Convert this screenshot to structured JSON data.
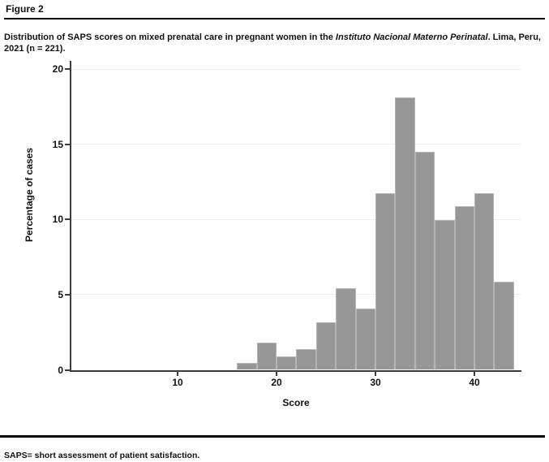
{
  "figure": {
    "label": "Figure 2",
    "caption_prefix": "Distribution of SAPS scores on mixed prenatal care in pregnant women in the ",
    "caption_italic": "Instituto Nacional Materno Perinatal",
    "caption_suffix": ". Lima, Peru, 2021 (n = 221).",
    "footnote": "SAPS= short assessment of patient satisfaction."
  },
  "chart_data": {
    "type": "bar",
    "subtype": "histogram",
    "title": "",
    "xlabel": "Score",
    "ylabel": "Percentage of cases",
    "x_ticks": [
      10,
      20,
      30,
      40
    ],
    "y_ticks": [
      0,
      5,
      10,
      15,
      20
    ],
    "xlim": [
      0,
      44.8
    ],
    "ylim": [
      0,
      20
    ],
    "grid": true,
    "legend_position": "none",
    "bin_width": 2,
    "n_total": 221,
    "bins": [
      {
        "start": 16,
        "end": 18,
        "count": 1,
        "pct": 0.45
      },
      {
        "start": 18,
        "end": 20,
        "count": 4,
        "pct": 1.81
      },
      {
        "start": 20,
        "end": 22,
        "count": 2,
        "pct": 0.9
      },
      {
        "start": 22,
        "end": 24,
        "count": 3,
        "pct": 1.36
      },
      {
        "start": 24,
        "end": 26,
        "count": 7,
        "pct": 3.17
      },
      {
        "start": 26,
        "end": 28,
        "count": 12,
        "pct": 5.43
      },
      {
        "start": 28,
        "end": 30,
        "count": 9,
        "pct": 4.07
      },
      {
        "start": 30,
        "end": 32,
        "count": 26,
        "pct": 11.76
      },
      {
        "start": 32,
        "end": 34,
        "count": 40,
        "pct": 18.1
      },
      {
        "start": 34,
        "end": 36,
        "count": 32,
        "pct": 14.48
      },
      {
        "start": 36,
        "end": 38,
        "count": 22,
        "pct": 9.95
      },
      {
        "start": 38,
        "end": 40,
        "count": 24,
        "pct": 10.86
      },
      {
        "start": 40,
        "end": 42,
        "count": 26,
        "pct": 11.76
      },
      {
        "start": 42,
        "end": 44,
        "count": 13,
        "pct": 5.88
      }
    ],
    "colors": {
      "bar_fill": "#979797",
      "bar_border": "#b5b5b5",
      "gridline": "#e8eff0",
      "axis": "#3c3c3c",
      "rule": "#000000",
      "text": "#111111"
    }
  }
}
